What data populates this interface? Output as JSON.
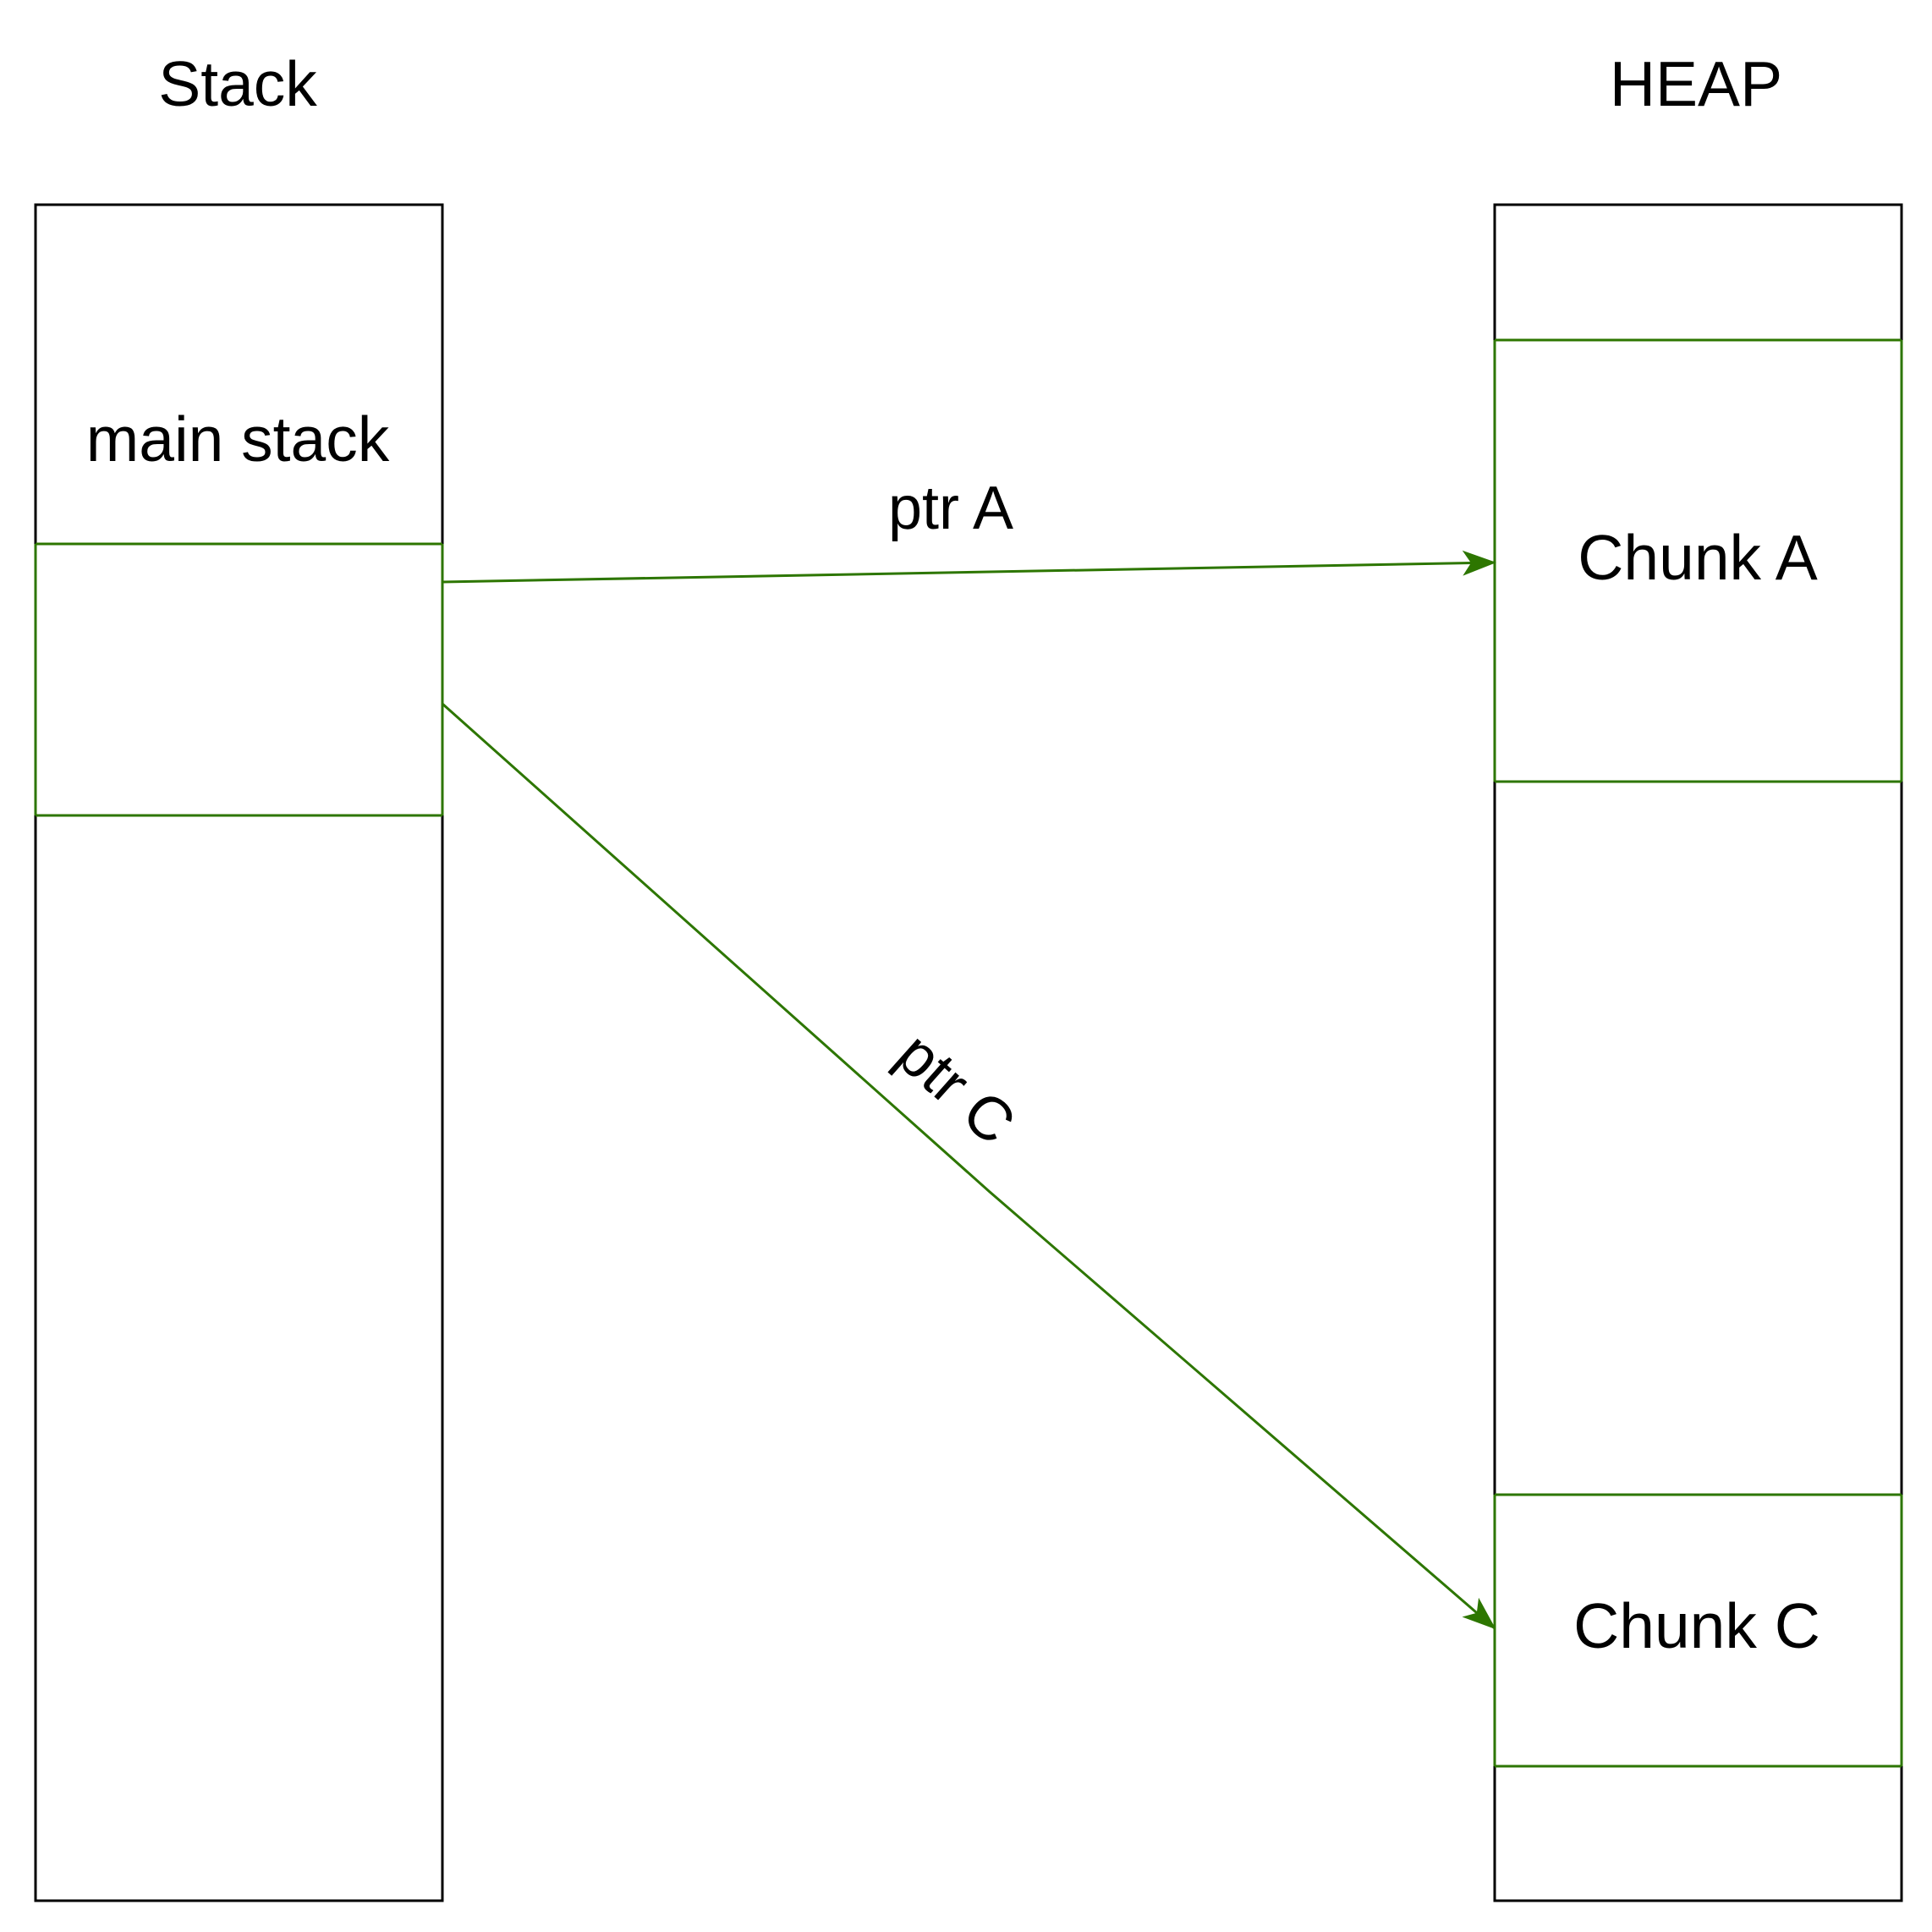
{
  "colors": {
    "background": "#ffffff",
    "outline": "#000000",
    "pointer": "#2d7600",
    "text": "#000000"
  },
  "columns": {
    "stack": {
      "title": "Stack",
      "blocks": {
        "main_stack": {
          "label": "main stack"
        },
        "pointer_slot": {
          "label": ""
        }
      }
    },
    "heap": {
      "title": "HEAP",
      "blocks": {
        "chunk_a": {
          "label": "Chunk A"
        },
        "chunk_c": {
          "label": "Chunk C"
        }
      }
    }
  },
  "edges": {
    "ptr_a": {
      "label": "ptr A",
      "from": "pointer_slot",
      "to": "chunk_a"
    },
    "ptr_c": {
      "label": "ptr C",
      "from": "pointer_slot",
      "to": "chunk_c"
    }
  }
}
